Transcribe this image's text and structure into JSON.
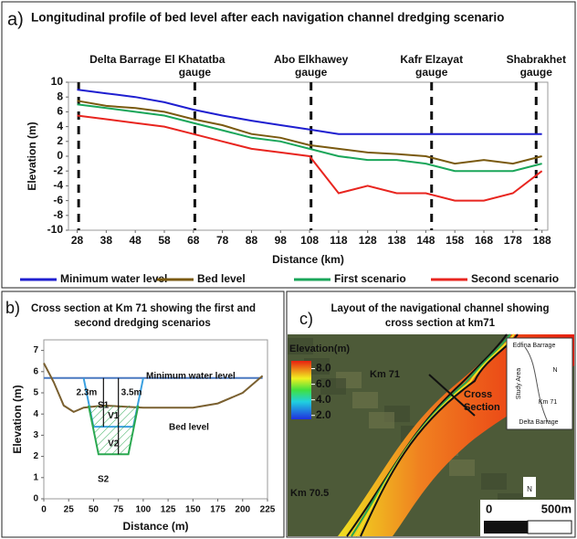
{
  "chart_data": [
    {
      "type": "line",
      "panel": "a)",
      "title": "Longitudinal profile of bed level after each navigation channel dredging scenario",
      "xlabel": "Distance (km)",
      "ylabel": "Elevation (m)",
      "x": [
        28,
        38,
        48,
        58,
        68,
        78,
        88,
        98,
        108,
        118,
        128,
        138,
        148,
        158,
        168,
        178,
        188
      ],
      "series": [
        {
          "name": "Minimum water level",
          "color": "#1f1fd0",
          "values": [
            9,
            8.5,
            8,
            7.3,
            6.3,
            5.5,
            4.8,
            4.2,
            3.6,
            3,
            3,
            3,
            3,
            3,
            3,
            3,
            3
          ]
        },
        {
          "name": "Bed level",
          "color": "#7a5a10",
          "values": [
            7.5,
            6.8,
            6.5,
            6,
            5,
            4.2,
            3,
            2.5,
            1.5,
            1,
            0.5,
            0.3,
            0,
            -1,
            -0.5,
            -1,
            0
          ]
        },
        {
          "name": "First scenario",
          "color": "#1aa65a",
          "values": [
            7,
            6.5,
            6,
            5.5,
            4.5,
            3.5,
            2.5,
            2,
            1,
            0,
            -0.5,
            -0.5,
            -1,
            -2,
            -2,
            -2,
            -1
          ]
        },
        {
          "name": "Second scenario",
          "color": "#e8251f",
          "values": [
            5.5,
            5,
            4.5,
            4,
            3,
            2,
            1,
            0.5,
            0,
            -5,
            -4,
            -5,
            -5,
            -6,
            -6,
            -5,
            -2
          ]
        }
      ],
      "gauges": [
        {
          "x": 28.5,
          "label": [
            "Delta Barrage"
          ]
        },
        {
          "x": 68.5,
          "label": [
            "El Khatatba",
            "gauge"
          ]
        },
        {
          "x": 108.5,
          "label": [
            "Abo Elkhawey",
            "gauge"
          ]
        },
        {
          "x": 150,
          "label": [
            "Kafr Elzayat",
            "gauge"
          ]
        },
        {
          "x": 186,
          "label": [
            "Shabrakhet",
            "gauge"
          ]
        }
      ],
      "xlim": [
        25,
        190
      ],
      "xticks": [
        28,
        38,
        48,
        58,
        68,
        78,
        88,
        98,
        108,
        118,
        128,
        138,
        148,
        158,
        168,
        178,
        188
      ],
      "ylim": [
        -10,
        10
      ],
      "yticks": [
        -10,
        -8,
        -6,
        -4,
        -2,
        0,
        2,
        4,
        6,
        8,
        10
      ]
    },
    {
      "type": "line",
      "panel": "b)",
      "title": [
        "Cross section at Km 71 showing the first and",
        "second dredging scenarios"
      ],
      "xlabel": "Distance (m)",
      "ylabel": "Elevation (m)",
      "series": [
        {
          "name": "Minimum water level",
          "color": "#4a78c0",
          "x": [
            0,
            220
          ],
          "values": [
            5.7,
            5.7
          ]
        },
        {
          "name": "Bed level",
          "color": "#7a6030",
          "x": [
            0,
            10,
            20,
            30,
            40,
            60,
            100,
            150,
            175,
            200,
            220
          ],
          "values": [
            6.4,
            5.5,
            4.4,
            4.1,
            4.3,
            4.4,
            4.3,
            4.3,
            4.5,
            5,
            5.8
          ]
        },
        {
          "name": "S1",
          "color": "#3aa0e0",
          "x": [
            40,
            50,
            90,
            100
          ],
          "values": [
            5.7,
            3.4,
            3.4,
            5.7
          ]
        },
        {
          "name": "S2",
          "color": "#2aa850",
          "x": [
            45,
            55,
            85,
            95
          ],
          "values": [
            4.4,
            2.1,
            2.1,
            4.4
          ],
          "hatch": true
        }
      ],
      "annotations": [
        "2.3m",
        "3.5m",
        "V1",
        "V2"
      ],
      "xlim": [
        0,
        225
      ],
      "xticks": [
        0,
        25,
        50,
        75,
        100,
        125,
        150,
        175,
        200,
        225
      ],
      "ylim": [
        0,
        7.5
      ],
      "yticks": [
        0,
        1,
        2,
        3,
        4,
        5,
        6,
        7
      ]
    }
  ],
  "map": {
    "panel": "c)",
    "title": [
      "Layout of the navigational channel showing",
      "cross section at km71"
    ],
    "colorbar": {
      "label": "Elevation(m)",
      "clim": [
        1.5,
        9
      ],
      "ticks": [
        {
          "value": 8,
          "label": "8.0"
        },
        {
          "value": 6,
          "label": "6.0"
        },
        {
          "value": 4,
          "label": "4.0"
        },
        {
          "value": 2,
          "label": "2.0"
        }
      ]
    },
    "labels": [
      "Km 71",
      "Km 70.5",
      "Cross",
      "Section"
    ],
    "inset": [
      "Edfina Barrage",
      "Study Area",
      "Km 71",
      "Delta Barrage",
      "N"
    ],
    "scale": [
      "0",
      "500m"
    ],
    "north": "N"
  }
}
